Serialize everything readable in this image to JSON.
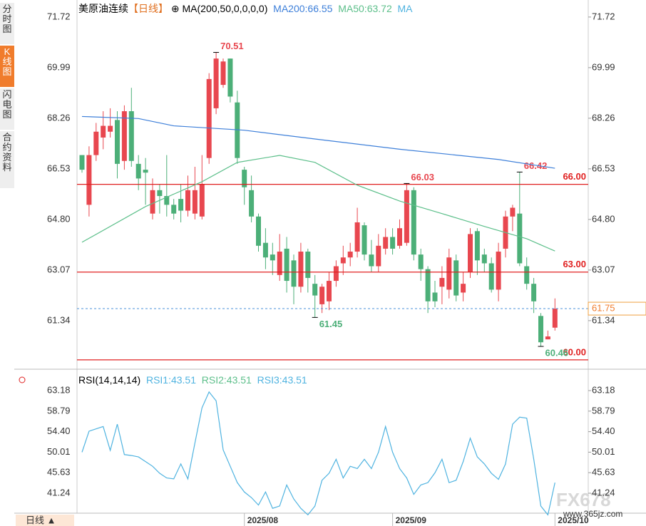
{
  "sidebar": [
    "分时图",
    "K线图",
    "闪电图",
    "合约资料"
  ],
  "header": {
    "title": "美原油连续",
    "period": "【日线】",
    "legend": [
      "MA(200,50,0,0,0,0)",
      "MA200:66.55",
      "MA50:63.72",
      "MA"
    ]
  },
  "rsi_header": [
    "RSI(14,14,14)",
    "RSI1:43.51",
    "RSI2:43.51",
    "RSI3:43.51"
  ],
  "footer": {
    "period": "日线 ▲",
    "watermark": "FX678",
    "site": "www.365jz.com"
  },
  "chart_data": [
    {
      "type": "candlestick",
      "ylim": [
        59.68,
        72.18
      ],
      "yticks": [
        71.72,
        69.99,
        68.26,
        66.53,
        {
          "value": 64.8,
          "label": "64.80"
        },
        63.07,
        61.34
      ],
      "xticks": [
        {
          "value": 23,
          "label": "2025/08"
        },
        {
          "value": 44,
          "label": "2025/09"
        },
        {
          "value": 67,
          "label": "2025/10"
        }
      ],
      "up_color": "#e8474f",
      "down_color": "#4caf78",
      "open": [
        67.0,
        65.3,
        67.0,
        67.6,
        67.8,
        68.2,
        66.8,
        68.5,
        66.7,
        66.5,
        65.0,
        65.8,
        65.6,
        65.3,
        65.5,
        65.1,
        65.0,
        64.9,
        66.9,
        68.6,
        69.4,
        70.3,
        68.8,
        66.5,
        65.8,
        64.9,
        64.0,
        63.6,
        62.9,
        63.8,
        63.4,
        62.5,
        63.7,
        62.6,
        61.9,
        62.0,
        62.7,
        63.3,
        63.5,
        63.7,
        64.6,
        63.6,
        63.2,
        63.8,
        64.2,
        63.9,
        64.0,
        65.8,
        63.6,
        63.1,
        62.3,
        62.5,
        62.4,
        63.4,
        62.3,
        63.0,
        64.4,
        63.6,
        63.3,
        62.4,
        63.8,
        64.9,
        65.0,
        63.2,
        62.6,
        61.5,
        60.7,
        61.1
      ],
      "close": [
        66.5,
        67.0,
        67.8,
        68.0,
        68.0,
        66.7,
        68.5,
        66.8,
        66.2,
        66.4,
        65.8,
        65.6,
        65.3,
        65.0,
        65.1,
        65.8,
        65.8,
        66.0,
        69.6,
        70.3,
        70.2,
        69.0,
        66.9,
        65.9,
        64.9,
        63.9,
        63.5,
        63.4,
        63.7,
        62.7,
        62.5,
        63.7,
        62.8,
        62.2,
        62.5,
        62.7,
        63.2,
        63.5,
        63.7,
        64.7,
        63.6,
        63.2,
        63.9,
        64.2,
        63.8,
        64.5,
        65.8,
        63.6,
        63.1,
        62.0,
        62.0,
        62.8,
        63.5,
        62.2,
        62.6,
        64.3,
        63.4,
        63.3,
        62.4,
        63.7,
        64.9,
        65.2,
        63.3,
        62.6,
        62.0,
        60.6,
        60.8,
        61.75
      ],
      "high": [
        67.0,
        67.3,
        68.1,
        68.5,
        68.6,
        68.5,
        68.7,
        69.3,
        67.0,
        66.9,
        66.2,
        66.0,
        67.0,
        65.5,
        66.0,
        66.3,
        66.6,
        67.0,
        69.8,
        70.51,
        70.3,
        70.3,
        69.2,
        66.6,
        66.3,
        65.0,
        64.5,
        64.0,
        64.3,
        64.2,
        63.6,
        64.0,
        63.8,
        62.9,
        62.6,
        63.0,
        63.4,
        63.9,
        64.0,
        65.2,
        64.7,
        64.1,
        64.3,
        64.5,
        64.5,
        64.8,
        66.03,
        65.9,
        63.8,
        63.2,
        62.7,
        63.2,
        63.8,
        63.6,
        63.0,
        64.5,
        64.5,
        63.8,
        63.5,
        64.0,
        65.1,
        65.3,
        66.42,
        63.5,
        62.8,
        61.6,
        61.0,
        62.1
      ],
      "low": [
        66.4,
        64.9,
        66.8,
        67.2,
        67.6,
        66.2,
        66.5,
        66.6,
        65.8,
        65.3,
        64.8,
        65.0,
        64.9,
        64.8,
        64.7,
        64.9,
        64.8,
        64.8,
        66.7,
        68.4,
        69.3,
        68.8,
        66.7,
        65.3,
        64.7,
        63.7,
        63.1,
        62.9,
        62.7,
        62.3,
        61.9,
        62.3,
        62.3,
        61.45,
        61.6,
        61.7,
        62.5,
        62.9,
        63.2,
        63.5,
        63.4,
        63.0,
        63.0,
        63.6,
        63.6,
        63.8,
        63.9,
        63.4,
        62.7,
        61.6,
        61.8,
        61.9,
        62.1,
        62.0,
        62.0,
        62.8,
        62.9,
        63.0,
        62.3,
        62.0,
        63.5,
        64.4,
        63.2,
        62.4,
        61.6,
        60.46,
        60.7,
        61.0
      ],
      "series": [
        {
          "name": "MA200",
          "color": "#3d7fd9",
          "x": [
            0,
            8,
            13,
            23,
            33,
            45,
            59,
            67
          ],
          "values": [
            68.32,
            68.25,
            68.0,
            67.85,
            67.55,
            67.2,
            66.85,
            66.55
          ]
        },
        {
          "name": "MA50",
          "color": "#5cbf8a",
          "x": [
            0,
            9,
            17,
            22,
            28,
            33,
            39,
            45,
            51,
            57,
            63,
            67
          ],
          "values": [
            64.02,
            65.24,
            66.09,
            66.75,
            66.99,
            66.75,
            65.97,
            65.43,
            65.0,
            64.56,
            64.14,
            63.72
          ]
        }
      ],
      "levels": [
        {
          "value": 66,
          "label": "66.00"
        },
        {
          "value": 63,
          "label": "63.00"
        },
        {
          "value": 60,
          "label": "60.00"
        }
      ],
      "level_color": "#e02020"
    },
    {
      "type": "line",
      "ylim": [
        36.97,
        67.45
      ],
      "yticks": [
        63.18,
        58.79,
        {
          "value": 54.4,
          "label": "54.40"
        },
        50.01,
        45.63,
        41.24
      ],
      "series": [
        {
          "name": "RSI",
          "color": "#4fb3e0",
          "values": [
            50.0,
            54.5,
            55.0,
            55.5,
            50.4,
            56.0,
            49.5,
            49.3,
            49.0,
            48.0,
            47.0,
            45.5,
            44.5,
            44.3,
            47.5,
            44.3,
            52.0,
            59.5,
            62.9,
            61.0,
            50.5,
            47.0,
            43.5,
            41.5,
            40.3,
            38.7,
            41.5,
            38.0,
            38.5,
            43.0,
            40.0,
            38.0,
            36.6,
            38.5,
            44.0,
            45.5,
            48.5,
            44.5,
            47.0,
            46.5,
            48.5,
            46.5,
            50.0,
            55.5,
            50.0,
            46.5,
            44.5,
            41.0,
            43.0,
            43.5,
            45.6,
            48.5,
            43.5,
            44.0,
            48.0,
            53.0,
            49.0,
            47.5,
            45.5,
            44.2,
            47.5,
            56.0,
            57.5,
            57.3,
            48.5,
            38.5,
            36.6,
            43.51
          ]
        }
      ]
    }
  ]
}
